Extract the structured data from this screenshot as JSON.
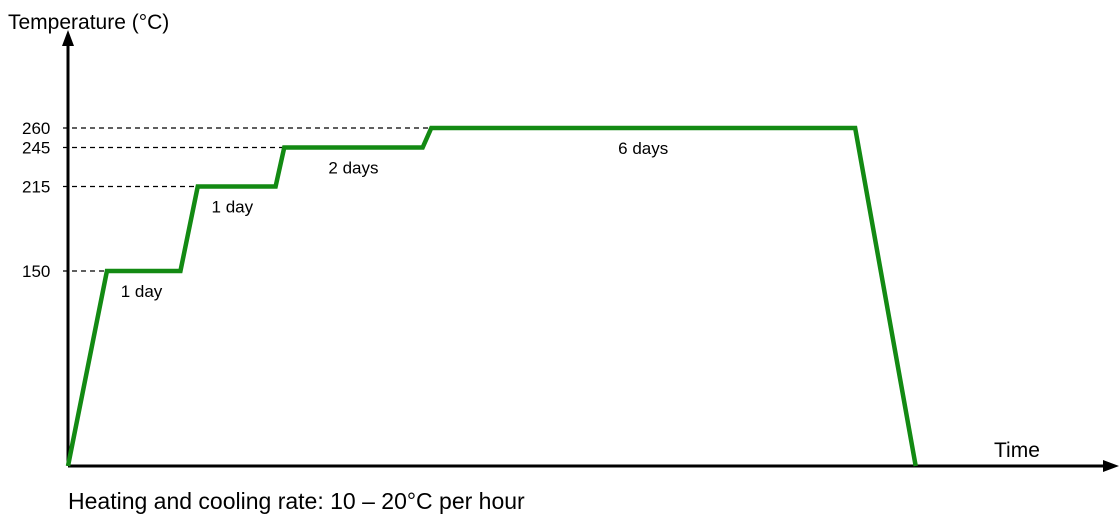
{
  "chart_data": {
    "type": "line",
    "ylabel": "Temperature (°C)",
    "xlabel": "Time",
    "footnote": "Heating and cooling rate: 10 – 20°C per hour",
    "yticks": [
      "150",
      "215",
      "245",
      "260"
    ],
    "ylim": [
      0,
      310
    ],
    "grid": false,
    "series": [
      {
        "color": "#138a13",
        "points": [
          [
            0,
            0
          ],
          [
            4.5,
            150
          ],
          [
            13,
            150
          ],
          [
            15,
            215
          ],
          [
            24,
            215
          ],
          [
            25,
            245
          ],
          [
            41,
            245
          ],
          [
            42,
            260
          ],
          [
            91,
            260
          ],
          [
            98,
            0
          ]
        ]
      }
    ],
    "annotations": [
      {
        "text": "1 day",
        "x": 8.5,
        "y": 150
      },
      {
        "text": "1 day",
        "x": 19,
        "y": 215
      },
      {
        "text": "2 days",
        "x": 33,
        "y": 245
      },
      {
        "text": "6 days",
        "x": 66.5,
        "y": 260
      }
    ]
  }
}
